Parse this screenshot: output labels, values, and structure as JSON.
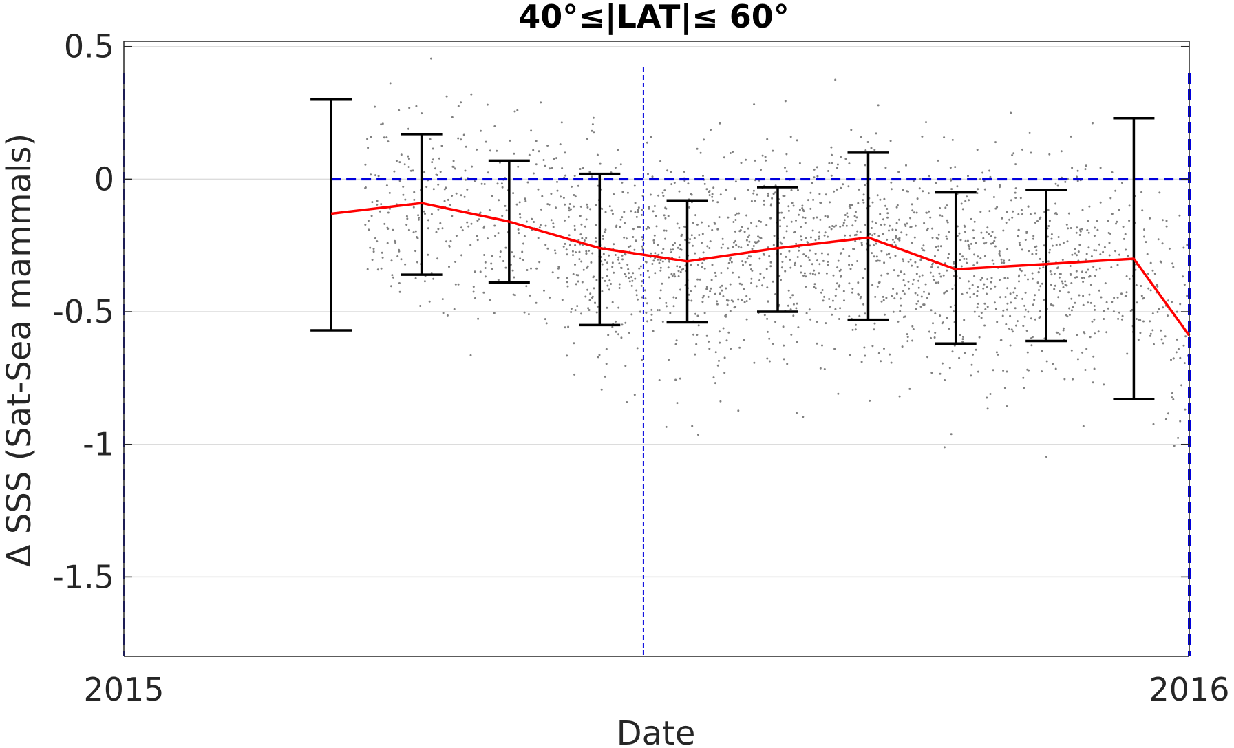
{
  "chart_data": {
    "type": "line",
    "title": "40°≤|LAT|≤ 60°",
    "xlabel": "Date",
    "ylabel": "Δ SSS (Sat-Sea mammals)",
    "x_axis": {
      "min": "2015-01-01",
      "max": "2016-01-01",
      "tick_values": [
        "2015-01-01",
        "2016-01-01"
      ],
      "tick_labels": [
        "2015",
        "2016"
      ]
    },
    "y_axis": {
      "min": -1.8,
      "max": 0.52,
      "tick_values": [
        0.5,
        0,
        -0.5,
        -1,
        -1.5
      ],
      "tick_labels": [
        "0.5",
        "0",
        "-0.5",
        "-1",
        "-1.5"
      ]
    },
    "grid": "horizontal",
    "colors": {
      "mean_line": "#ff0000",
      "error_bars": "#000000",
      "points": "#808080",
      "reference_lines": "#0000dd"
    },
    "series": [
      {
        "style": "line",
        "x": [
          "2015-03-13",
          "2015-04-13",
          "2015-05-13",
          "2015-06-13",
          "2015-07-13",
          "2015-08-13",
          "2015-09-13",
          "2015-10-13",
          "2015-11-13",
          "2015-12-13",
          "2016-01-01"
        ],
        "y": [
          -0.13,
          -0.09,
          -0.16,
          -0.26,
          -0.31,
          -0.26,
          -0.22,
          -0.34,
          -0.32,
          -0.3,
          -0.59
        ],
        "error_low": [
          -0.57,
          -0.36,
          -0.39,
          -0.55,
          -0.54,
          -0.5,
          -0.53,
          -0.62,
          -0.61,
          -0.83,
          null
        ],
        "error_high": [
          0.3,
          0.17,
          0.07,
          0.02,
          -0.08,
          -0.03,
          0.1,
          -0.05,
          -0.04,
          0.23,
          null
        ]
      },
      {
        "style": "scatter",
        "description_of_spread": "individual differences scattered around the monthly means, mostly between -1.0 and 0.45"
      }
    ],
    "reference_lines": {
      "horizontal_y": 0,
      "vertical_x": [
        "2015-01-01",
        "2015-06-28",
        "2016-01-01"
      ]
    }
  }
}
